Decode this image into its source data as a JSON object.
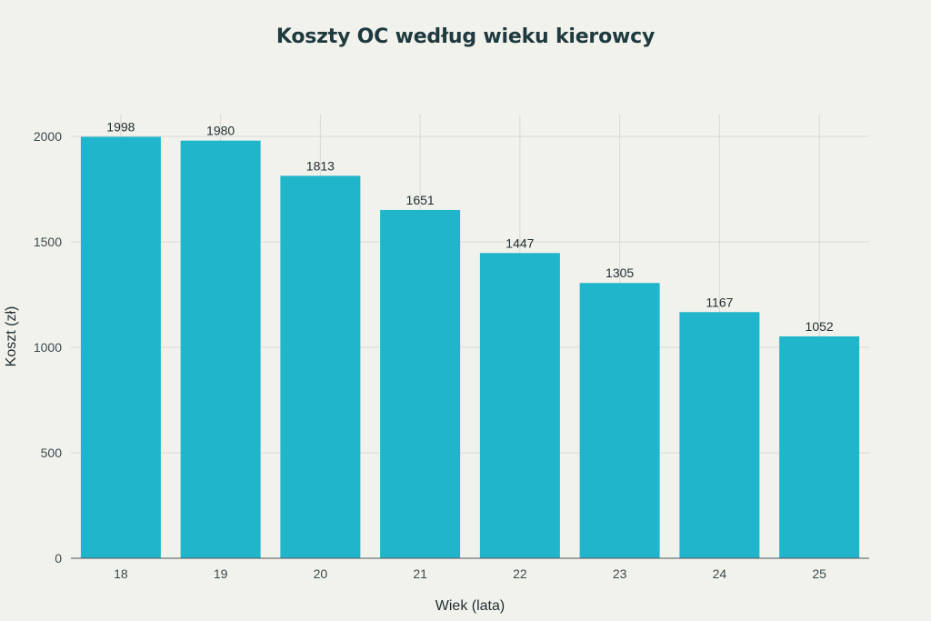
{
  "chart_data": {
    "type": "bar",
    "title": "Koszty OC według wieku kierowcy",
    "xlabel": "Wiek (lata)",
    "ylabel": "Koszt (zł)",
    "categories": [
      "18",
      "19",
      "20",
      "21",
      "22",
      "23",
      "24",
      "25"
    ],
    "values": [
      1998,
      1980,
      1813,
      1651,
      1447,
      1305,
      1167,
      1052
    ],
    "data_labels": [
      "1998",
      "1980",
      "1813",
      "1651",
      "1447",
      "1305",
      "1167",
      "1052"
    ],
    "y_ticks": [
      0,
      500,
      1000,
      1500,
      2000
    ],
    "ylim": [
      0,
      2100
    ],
    "grid": true,
    "legend": "none",
    "bar_color": "#21b5cc",
    "background": "#f2f2ed",
    "grid_color": "#d9d9d4"
  }
}
